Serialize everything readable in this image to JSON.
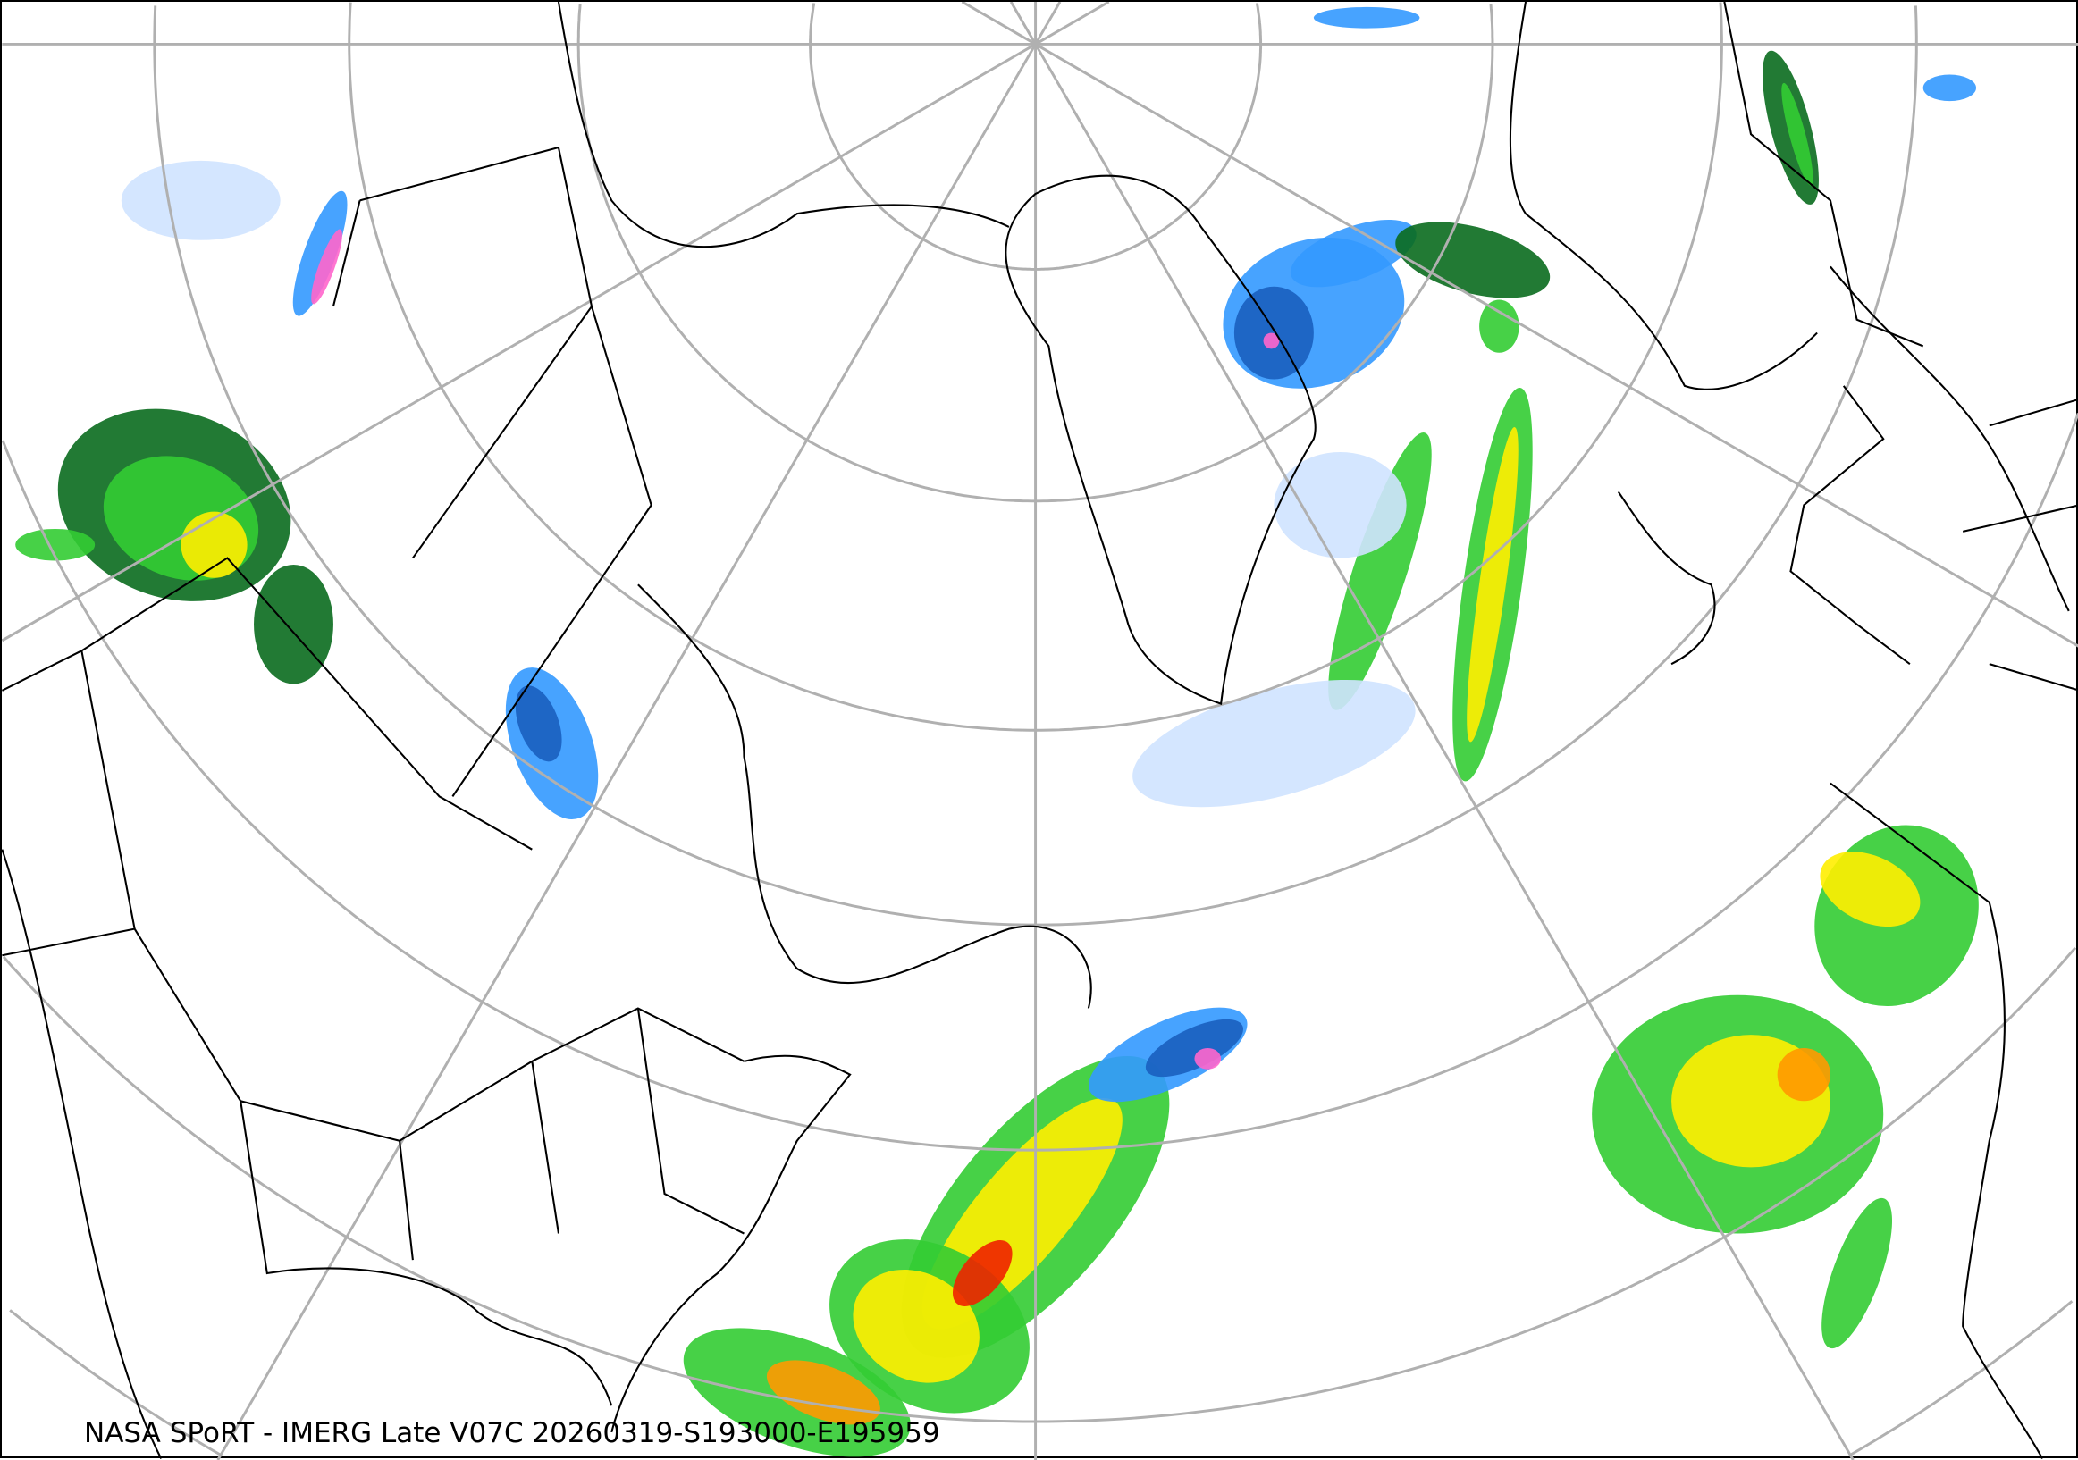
{
  "map": {
    "caption": "NASA SPoRT - IMERG Late V07C 20260319-S193000-E195959",
    "projection": "polar stereographic",
    "layers": [
      "precipitation-rate",
      "coastlines",
      "political-boundaries",
      "graticule"
    ],
    "colors": {
      "light_blue": "#cfe3ff",
      "mid_blue": "#3399ff",
      "dark_blue": "#1a5fbf",
      "pink": "#ff66cc",
      "dark_green": "#0a6b1e",
      "green": "#33cc33",
      "yellow_green": "#ccff33",
      "yellow": "#ffee00",
      "orange": "#ff9900",
      "red": "#ee2200",
      "graticule": "#b0b0b0",
      "boundary": "#000000"
    }
  }
}
